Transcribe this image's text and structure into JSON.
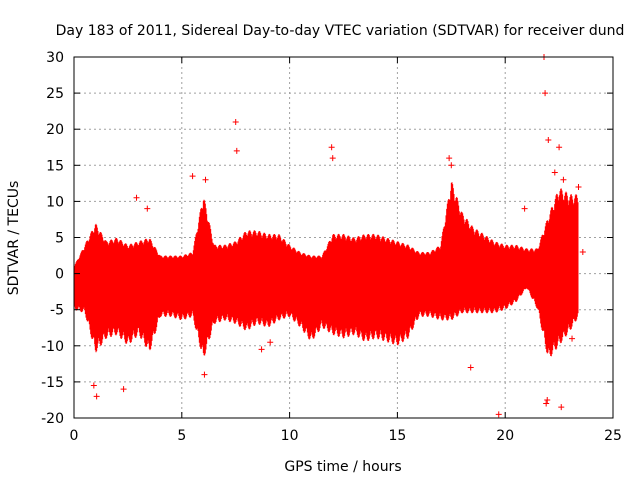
{
  "chart_data": {
    "type": "scatter",
    "title": "Day 183 of 2011, Sidereal Day-to-day VTEC variation (SDTVAR) for receiver dund",
    "xlabel": "GPS time / hours",
    "ylabel": "SDTVAR / TECUs",
    "xlim": [
      0,
      25
    ],
    "ylim": [
      -20,
      30
    ],
    "xticks": [
      0,
      5,
      10,
      15,
      20,
      25
    ],
    "yticks": [
      -20,
      -15,
      -10,
      -5,
      0,
      5,
      10,
      15,
      20,
      25,
      30
    ],
    "grid": true,
    "marker": "+",
    "color": "#ff0000",
    "envelope": {
      "x": [
        0.0,
        0.5,
        1.0,
        1.5,
        2.0,
        2.5,
        3.0,
        3.5,
        4.0,
        4.5,
        5.0,
        5.5,
        6.0,
        6.5,
        7.0,
        7.5,
        8.0,
        8.5,
        9.0,
        9.5,
        10.0,
        10.5,
        11.0,
        11.5,
        12.0,
        12.5,
        13.0,
        13.5,
        14.0,
        14.5,
        15.0,
        15.5,
        16.0,
        16.5,
        17.0,
        17.5,
        18.0,
        18.5,
        19.0,
        19.5,
        20.0,
        20.5,
        21.0,
        21.5,
        22.0,
        22.5,
        23.0,
        23.4
      ],
      "upper": [
        1.0,
        4.0,
        7.0,
        4.5,
        5.0,
        4.0,
        4.5,
        5.0,
        2.5,
        2.5,
        2.5,
        3.0,
        11.0,
        4.0,
        4.0,
        4.5,
        6.0,
        6.0,
        5.5,
        5.5,
        4.0,
        3.0,
        2.5,
        2.5,
        5.5,
        5.5,
        5.0,
        5.5,
        5.5,
        5.0,
        4.5,
        4.0,
        3.0,
        3.0,
        4.0,
        13.0,
        8.5,
        6.5,
        5.5,
        4.5,
        4.0,
        4.0,
        3.5,
        3.5,
        8.0,
        12.0,
        11.0,
        11.0
      ],
      "lower": [
        -5.0,
        -5.5,
        -11.0,
        -9.0,
        -8.5,
        -10.0,
        -8.5,
        -11.0,
        -6.0,
        -6.0,
        -6.5,
        -6.0,
        -12.0,
        -7.0,
        -6.5,
        -7.0,
        -8.0,
        -7.0,
        -7.5,
        -6.5,
        -6.0,
        -7.5,
        -9.5,
        -7.5,
        -8.5,
        -9.0,
        -8.5,
        -9.5,
        -9.0,
        -9.5,
        -10.0,
        -9.0,
        -6.0,
        -6.0,
        -6.5,
        -6.5,
        -5.5,
        -5.5,
        -5.5,
        -5.5,
        -5.0,
        -4.0,
        -2.0,
        -5.0,
        -12.0,
        -10.0,
        -8.0,
        -6.0
      ]
    },
    "outliers": {
      "x": [
        7.5,
        7.55,
        0.92,
        1.05,
        2.3,
        2.9,
        3.4,
        11.95,
        12.0,
        17.4,
        17.5,
        18.4,
        19.7,
        20.9,
        21.8,
        21.85,
        22.0,
        22.3,
        22.5,
        22.7,
        21.9,
        21.95,
        22.6,
        23.1,
        23.6,
        23.4,
        6.05,
        6.1,
        5.5,
        8.7,
        9.1
      ],
      "y": [
        21.0,
        17.0,
        -15.5,
        -17.0,
        -16.0,
        10.5,
        9.0,
        17.5,
        16.0,
        16.0,
        15.0,
        -13.0,
        -19.5,
        9.0,
        30.0,
        25.0,
        18.5,
        14.0,
        17.5,
        13.0,
        -18.0,
        -17.5,
        -18.5,
        -9.0,
        3.0,
        12.0,
        -14.0,
        13.0,
        13.5,
        -10.5,
        -9.5
      ]
    }
  }
}
